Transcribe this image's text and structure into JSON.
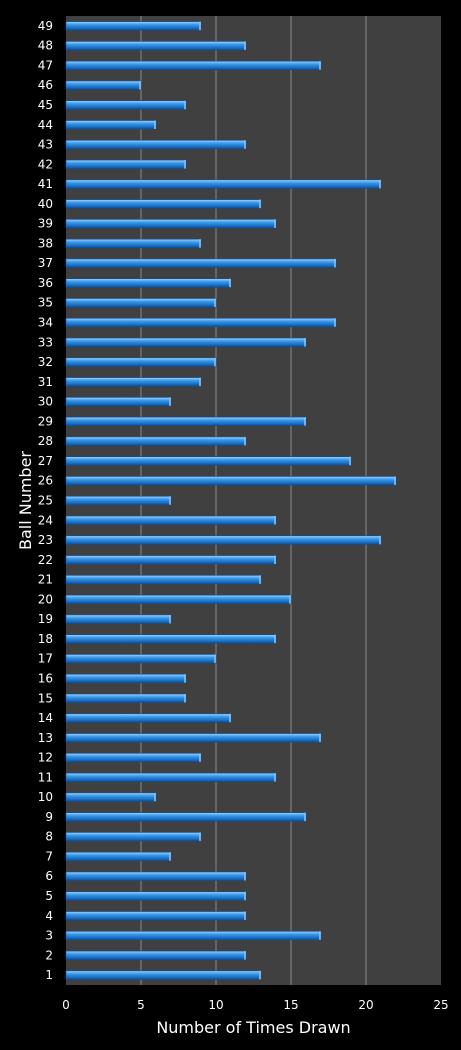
{
  "chart_data": {
    "type": "bar",
    "orientation": "horizontal",
    "xlabel": "Number of Times Drawn",
    "ylabel": "Ball Number",
    "xlim": [
      0,
      25
    ],
    "xticks": [
      0,
      5,
      10,
      15,
      20,
      25
    ],
    "grid": "vertical",
    "categories": [
      "1",
      "2",
      "3",
      "4",
      "5",
      "6",
      "7",
      "8",
      "9",
      "10",
      "11",
      "12",
      "13",
      "14",
      "15",
      "16",
      "17",
      "18",
      "19",
      "20",
      "21",
      "22",
      "23",
      "24",
      "25",
      "26",
      "27",
      "28",
      "29",
      "30",
      "31",
      "32",
      "33",
      "34",
      "35",
      "36",
      "37",
      "38",
      "39",
      "40",
      "41",
      "42",
      "43",
      "44",
      "45",
      "46",
      "47",
      "48",
      "49"
    ],
    "values": [
      13,
      12,
      17,
      12,
      12,
      12,
      7,
      9,
      16,
      6,
      14,
      9,
      17,
      11,
      8,
      8,
      10,
      14,
      7,
      15,
      13,
      14,
      21,
      14,
      7,
      22,
      19,
      12,
      16,
      7,
      9,
      10,
      16,
      18,
      10,
      11,
      18,
      9,
      14,
      13,
      21,
      8,
      12,
      6,
      8,
      5,
      17,
      12,
      9
    ],
    "colors": {
      "background": "#000000",
      "plot_area": "#404040",
      "grid": "#8a8a8a",
      "bar": "#2f8ee0",
      "bar_light": "#7cc4ff",
      "bar_dark": "#0d4f9a",
      "text": "#ffffff"
    }
  }
}
